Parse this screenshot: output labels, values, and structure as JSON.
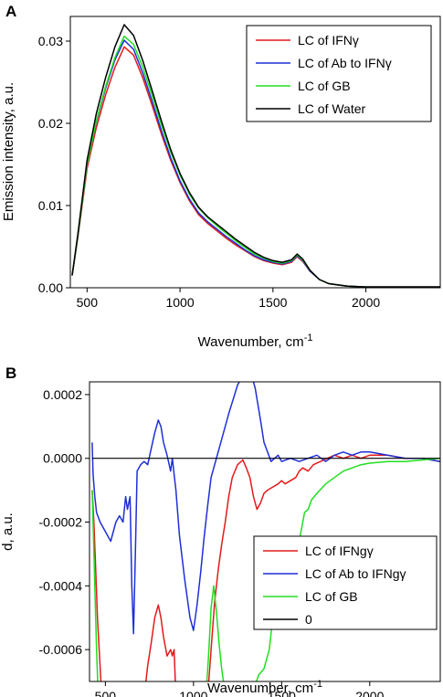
{
  "chart_data": [
    {
      "panel": "A",
      "type": "line",
      "xlabel": "Wavenumber, cm",
      "xlabel_sup": "-1",
      "ylabel": "Emission intensity, a.u.",
      "xlim": [
        410,
        2400
      ],
      "ylim": [
        0,
        0.033
      ],
      "xticks": [
        500,
        1000,
        1500,
        2000
      ],
      "yticks": [
        0.0,
        0.01,
        0.02,
        0.03
      ],
      "ytick_labels": [
        "0.00",
        "0.01",
        "0.02",
        "0.03"
      ],
      "legend_position": "top-right",
      "grid": false,
      "series": [
        {
          "name": "LC of IFNγ",
          "color": "#e31a1c",
          "x": [
            420,
            450,
            500,
            550,
            600,
            650,
            700,
            750,
            800,
            850,
            900,
            950,
            1000,
            1050,
            1100,
            1150,
            1200,
            1250,
            1300,
            1350,
            1400,
            1450,
            1500,
            1550,
            1600,
            1630,
            1660,
            1700,
            1750,
            1800,
            1900,
            2000,
            2100,
            2200,
            2300,
            2400
          ],
          "y": [
            0.0015,
            0.006,
            0.0145,
            0.0195,
            0.0235,
            0.0268,
            0.0293,
            0.0283,
            0.0255,
            0.0222,
            0.0187,
            0.0155,
            0.0128,
            0.0106,
            0.0089,
            0.0078,
            0.0069,
            0.006,
            0.0052,
            0.0045,
            0.0038,
            0.0033,
            0.003,
            0.0028,
            0.0031,
            0.0038,
            0.0032,
            0.002,
            0.001,
            0.0005,
            0.0002,
            0.0001,
            0.0001,
            0.0001,
            0.0001,
            0.0001
          ]
        },
        {
          "name": "LC of Ab to IFNγ",
          "color": "#1f2fd6",
          "x": [
            420,
            450,
            500,
            550,
            600,
            650,
            700,
            750,
            800,
            850,
            900,
            950,
            1000,
            1050,
            1100,
            1150,
            1200,
            1250,
            1300,
            1350,
            1400,
            1450,
            1500,
            1550,
            1600,
            1630,
            1660,
            1700,
            1750,
            1800,
            1900,
            2000,
            2100,
            2200,
            2300,
            2400
          ],
          "y": [
            0.0015,
            0.0062,
            0.015,
            0.0202,
            0.0243,
            0.0277,
            0.0301,
            0.029,
            0.0261,
            0.0227,
            0.0191,
            0.0158,
            0.013,
            0.0108,
            0.0091,
            0.008,
            0.0071,
            0.0062,
            0.0054,
            0.0046,
            0.0039,
            0.0034,
            0.0031,
            0.0029,
            0.0032,
            0.0039,
            0.0033,
            0.002,
            0.001,
            0.0005,
            0.0002,
            0.0001,
            0.0001,
            0.0001,
            0.0001,
            0.0001
          ]
        },
        {
          "name": "LC of GB",
          "color": "#22dd22",
          "x": [
            420,
            450,
            500,
            550,
            600,
            650,
            700,
            750,
            800,
            850,
            900,
            950,
            1000,
            1050,
            1100,
            1150,
            1200,
            1250,
            1300,
            1350,
            1400,
            1450,
            1500,
            1550,
            1600,
            1630,
            1660,
            1700,
            1750,
            1800,
            1900,
            2000,
            2100,
            2200,
            2300,
            2400
          ],
          "y": [
            0.0015,
            0.0062,
            0.015,
            0.0203,
            0.0245,
            0.028,
            0.0306,
            0.0296,
            0.0268,
            0.0234,
            0.0198,
            0.0165,
            0.0137,
            0.0114,
            0.0097,
            0.0085,
            0.0075,
            0.0066,
            0.0057,
            0.0049,
            0.0041,
            0.0036,
            0.0032,
            0.003,
            0.0033,
            0.004,
            0.0034,
            0.0021,
            0.001,
            0.0005,
            0.0002,
            0.0001,
            0.0001,
            0.0001,
            0.0001,
            0.0001
          ]
        },
        {
          "name": "LC of Water",
          "color": "#000000",
          "x": [
            420,
            450,
            500,
            550,
            600,
            650,
            700,
            750,
            800,
            850,
            900,
            950,
            1000,
            1050,
            1100,
            1150,
            1200,
            1250,
            1300,
            1350,
            1400,
            1450,
            1500,
            1550,
            1600,
            1630,
            1660,
            1700,
            1750,
            1800,
            1900,
            2000,
            2100,
            2200,
            2300,
            2400
          ],
          "y": [
            0.0015,
            0.0064,
            0.0155,
            0.0212,
            0.0256,
            0.0293,
            0.032,
            0.0307,
            0.0276,
            0.024,
            0.0203,
            0.0168,
            0.0139,
            0.0116,
            0.0098,
            0.0086,
            0.0077,
            0.0068,
            0.0059,
            0.0051,
            0.0043,
            0.0037,
            0.0033,
            0.0031,
            0.0034,
            0.0041,
            0.0035,
            0.0021,
            0.001,
            0.0005,
            0.0002,
            0.0001,
            0.0001,
            0.0001,
            0.0001,
            0.0001
          ]
        }
      ]
    },
    {
      "panel": "B",
      "type": "line",
      "xlabel": "Wavenumber, cm",
      "xlabel_sup": "-1",
      "ylabel": "d, a.u.",
      "xlim": [
        410,
        2400
      ],
      "ylim": [
        -0.0007,
        0.00024
      ],
      "xticks": [
        500,
        1000,
        1500,
        2000
      ],
      "yticks": [
        0.0002,
        0.0,
        -0.0002,
        -0.0004,
        -0.0006
      ],
      "ytick_labels": [
        "0.0002",
        "0.0000",
        "-0.0002",
        "-0.0004",
        "-0.0006"
      ],
      "legend_position": "bottom-right",
      "grid": false,
      "series": [
        {
          "name": "LC of IFNgγ",
          "color": "#e31a1c",
          "x": [
            425,
            435,
            445,
            455,
            465,
            475,
            485,
            720,
            740,
            760,
            780,
            800,
            815,
            830,
            850,
            870,
            880,
            890,
            900,
            1080,
            1100,
            1120,
            1140,
            1160,
            1180,
            1200,
            1220,
            1250,
            1280,
            1300,
            1320,
            1340,
            1360,
            1380,
            1400,
            1420,
            1450,
            1480,
            1500,
            1520,
            1550,
            1580,
            1600,
            1620,
            1650,
            1680,
            1720,
            1760,
            1800,
            1850,
            1900,
            1950,
            2000,
            2100,
            2200,
            2300,
            2400
          ],
          "y": [
            -0.0001,
            -0.0002,
            -0.00035,
            -0.0005,
            -0.0006,
            -0.0007,
            -0.00075,
            -0.00075,
            -0.00065,
            -0.00058,
            -0.0005,
            -0.00046,
            -0.0005,
            -0.00056,
            -0.00062,
            -0.0006,
            -0.00062,
            -0.0006,
            -0.00075,
            -0.00075,
            -0.0006,
            -0.00045,
            -0.00035,
            -0.00027,
            -0.0002,
            -0.00012,
            -6e-05,
            -2e-05,
            -5e-06,
            -3e-05,
            -6e-05,
            -0.00012,
            -0.00016,
            -0.00014,
            -0.00011,
            -0.0001,
            -9e-05,
            -8e-05,
            -7e-05,
            -8e-05,
            -7e-05,
            -6e-05,
            -4e-05,
            -3e-05,
            -4e-05,
            -2e-05,
            -1e-05,
            0.0,
            1e-05,
            0.0,
            1e-05,
            0.0,
            1e-05,
            1e-05,
            0.0,
            0.0,
            -1e-05
          ]
        },
        {
          "name": "LC of Ab to IFNgγ",
          "color": "#1f2fd6",
          "x": [
            425,
            430,
            440,
            450,
            470,
            500,
            530,
            560,
            580,
            600,
            615,
            625,
            640,
            650,
            660,
            670,
            680,
            700,
            720,
            740,
            760,
            780,
            800,
            815,
            830,
            850,
            870,
            880,
            890,
            900,
            920,
            950,
            980,
            1000,
            1010,
            1020,
            1040,
            1060,
            1080,
            1100,
            1150,
            1200,
            1250,
            1300,
            1330,
            1350,
            1380,
            1400,
            1420,
            1440,
            1460,
            1480,
            1500,
            1550,
            1600,
            1650,
            1700,
            1750,
            1800,
            1850,
            1900,
            1950,
            2000,
            2100,
            2200,
            2300,
            2400
          ],
          "y": [
            5e-05,
            -5e-05,
            -0.00012,
            -0.00017,
            -0.0002,
            -0.00023,
            -0.00026,
            -0.0002,
            -0.00018,
            -0.0002,
            -0.00012,
            -0.00016,
            -0.00012,
            -0.0004,
            -0.00055,
            -0.0003,
            -4e-05,
            -2e-05,
            -1e-05,
            -2e-05,
            3e-05,
            8e-05,
            0.00012,
            0.0001,
            5e-05,
            1e-05,
            -4e-05,
            0.0,
            -5e-05,
            -0.0001,
            -0.00024,
            -0.00038,
            -0.0005,
            -0.00054,
            -0.0005,
            -0.00046,
            -0.00036,
            -0.00025,
            -0.00015,
            -6e-05,
            4e-05,
            0.00014,
            0.00023,
            0.00028,
            0.00026,
            0.00022,
            0.00012,
            5e-05,
            2e-05,
            -1e-05,
            0.0,
            1e-05,
            -1e-05,
            0.0,
            -1e-05,
            0.0,
            1e-05,
            -1e-05,
            1e-05,
            2e-05,
            1e-05,
            2e-05,
            2e-05,
            1e-05,
            0.0,
            0.0,
            -1e-05
          ]
        },
        {
          "name": "LC of GB",
          "color": "#22dd22",
          "x": [
            425,
            430,
            440,
            450,
            460,
            1070,
            1085,
            1100,
            1115,
            1130,
            1145,
            1160,
            1175,
            1190,
            1200,
            1330,
            1350,
            1370,
            1400,
            1430,
            1460,
            1480,
            1500,
            1520,
            1530,
            1550,
            1570,
            1600,
            1630,
            1650,
            1670,
            1700,
            1750,
            1800,
            1850,
            1900,
            1950,
            2000,
            2100,
            2200,
            2300,
            2400
          ],
          "y": [
            -0.0001,
            -0.0002,
            -0.0004,
            -0.0006,
            -0.00075,
            -0.00075,
            -0.00062,
            -0.00047,
            -0.0004,
            -0.00048,
            -0.00058,
            -0.00066,
            -0.00072,
            -0.00075,
            -0.00075,
            -0.00075,
            -0.00071,
            -0.00068,
            -0.00066,
            -0.0006,
            -0.00045,
            -0.00037,
            -0.00033,
            -0.00032,
            -0.0003,
            -0.00032,
            -0.00028,
            -0.00026,
            -0.00017,
            -0.00016,
            -0.00013,
            -0.00011,
            -8e-05,
            -6e-05,
            -4e-05,
            -3e-05,
            -2e-05,
            -1.5e-05,
            -1e-05,
            -1e-05,
            -5e-06,
            0.0
          ]
        },
        {
          "name": "0",
          "color": "#000000",
          "x": [
            425,
            2400
          ],
          "y": [
            0.0,
            0.0
          ]
        }
      ]
    }
  ]
}
